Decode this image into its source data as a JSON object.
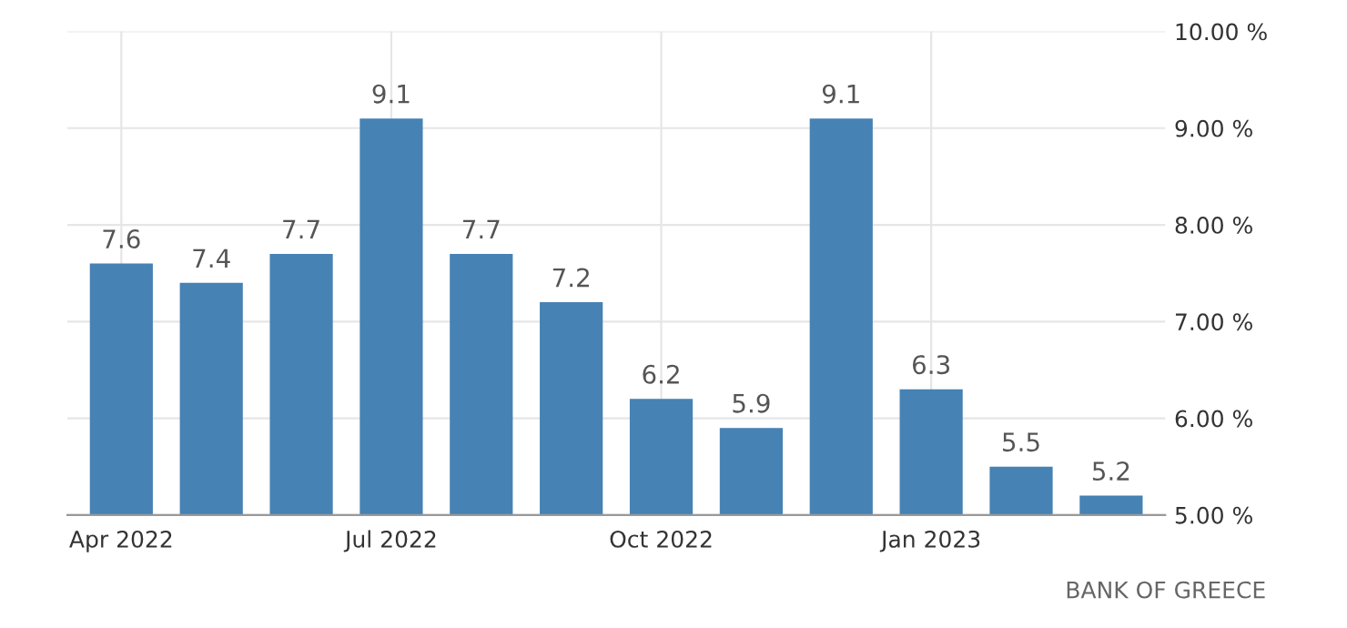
{
  "chart_data": {
    "type": "bar",
    "categories": [
      "Apr 2022",
      null,
      null,
      "Jul 2022",
      null,
      null,
      "Oct 2022",
      null,
      null,
      "Jan 2023",
      null,
      null
    ],
    "values": [
      7.6,
      7.4,
      7.7,
      9.1,
      7.7,
      7.2,
      6.2,
      5.9,
      9.1,
      6.3,
      5.5,
      5.2
    ],
    "color": "#4682b4",
    "ylim": [
      5,
      10
    ],
    "yticks": [
      {
        "value": 5,
        "label": "5.00 %"
      },
      {
        "value": 6,
        "label": "6.00 %"
      },
      {
        "value": 7,
        "label": "7.00 %"
      },
      {
        "value": 8,
        "label": "8.00 %"
      },
      {
        "value": 9,
        "label": "9.00 %"
      },
      {
        "value": 10,
        "label": "10.00 %"
      }
    ],
    "grid": true,
    "data_labels": true,
    "annotations": [
      "BANK OF GREECE"
    ]
  }
}
